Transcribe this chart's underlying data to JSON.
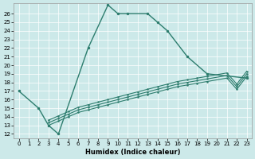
{
  "xlabel": "Humidex (Indice chaleur)",
  "main_x": [
    0,
    2,
    3,
    4,
    7,
    9,
    10,
    11,
    13,
    14,
    15,
    17,
    19,
    23
  ],
  "main_y": [
    17,
    15,
    13,
    12,
    22,
    27,
    26,
    26,
    26,
    25,
    24,
    21,
    19,
    18.5
  ],
  "ll1_x": [
    3,
    4,
    5,
    6,
    7,
    8,
    9,
    10,
    11,
    12,
    13,
    14,
    15,
    16,
    17,
    18,
    19,
    21,
    22,
    23
  ],
  "ll1_y": [
    13.0,
    13.5,
    14.0,
    14.5,
    14.8,
    15.1,
    15.4,
    15.7,
    16.0,
    16.3,
    16.6,
    16.9,
    17.2,
    17.5,
    17.7,
    17.9,
    18.1,
    18.5,
    17.2,
    18.7
  ],
  "ll2_x": [
    3,
    4,
    5,
    6,
    7,
    8,
    9,
    10,
    11,
    12,
    13,
    14,
    15,
    16,
    17,
    18,
    19,
    21,
    22,
    23
  ],
  "ll2_y": [
    13.3,
    13.8,
    14.3,
    14.8,
    15.1,
    15.4,
    15.7,
    16.0,
    16.3,
    16.6,
    16.9,
    17.2,
    17.5,
    17.8,
    18.0,
    18.2,
    18.4,
    18.8,
    17.5,
    19.0
  ],
  "ll3_x": [
    3,
    4,
    5,
    6,
    7,
    8,
    9,
    10,
    11,
    12,
    13,
    14,
    15,
    16,
    17,
    18,
    19,
    21,
    22,
    23
  ],
  "ll3_y": [
    13.6,
    14.1,
    14.6,
    15.1,
    15.4,
    15.7,
    16.0,
    16.3,
    16.6,
    16.9,
    17.2,
    17.5,
    17.8,
    18.1,
    18.3,
    18.5,
    18.7,
    19.1,
    17.8,
    19.3
  ],
  "line_color": "#2d7d6e",
  "bg_color": "#cce9e9",
  "grid_color": "#ffffff",
  "yticks": [
    12,
    13,
    14,
    15,
    16,
    17,
    18,
    19,
    20,
    21,
    22,
    23,
    24,
    25,
    26
  ],
  "xticks": [
    0,
    1,
    2,
    3,
    4,
    5,
    6,
    7,
    8,
    9,
    10,
    11,
    12,
    13,
    14,
    15,
    16,
    17,
    18,
    19,
    20,
    21,
    22,
    23
  ]
}
